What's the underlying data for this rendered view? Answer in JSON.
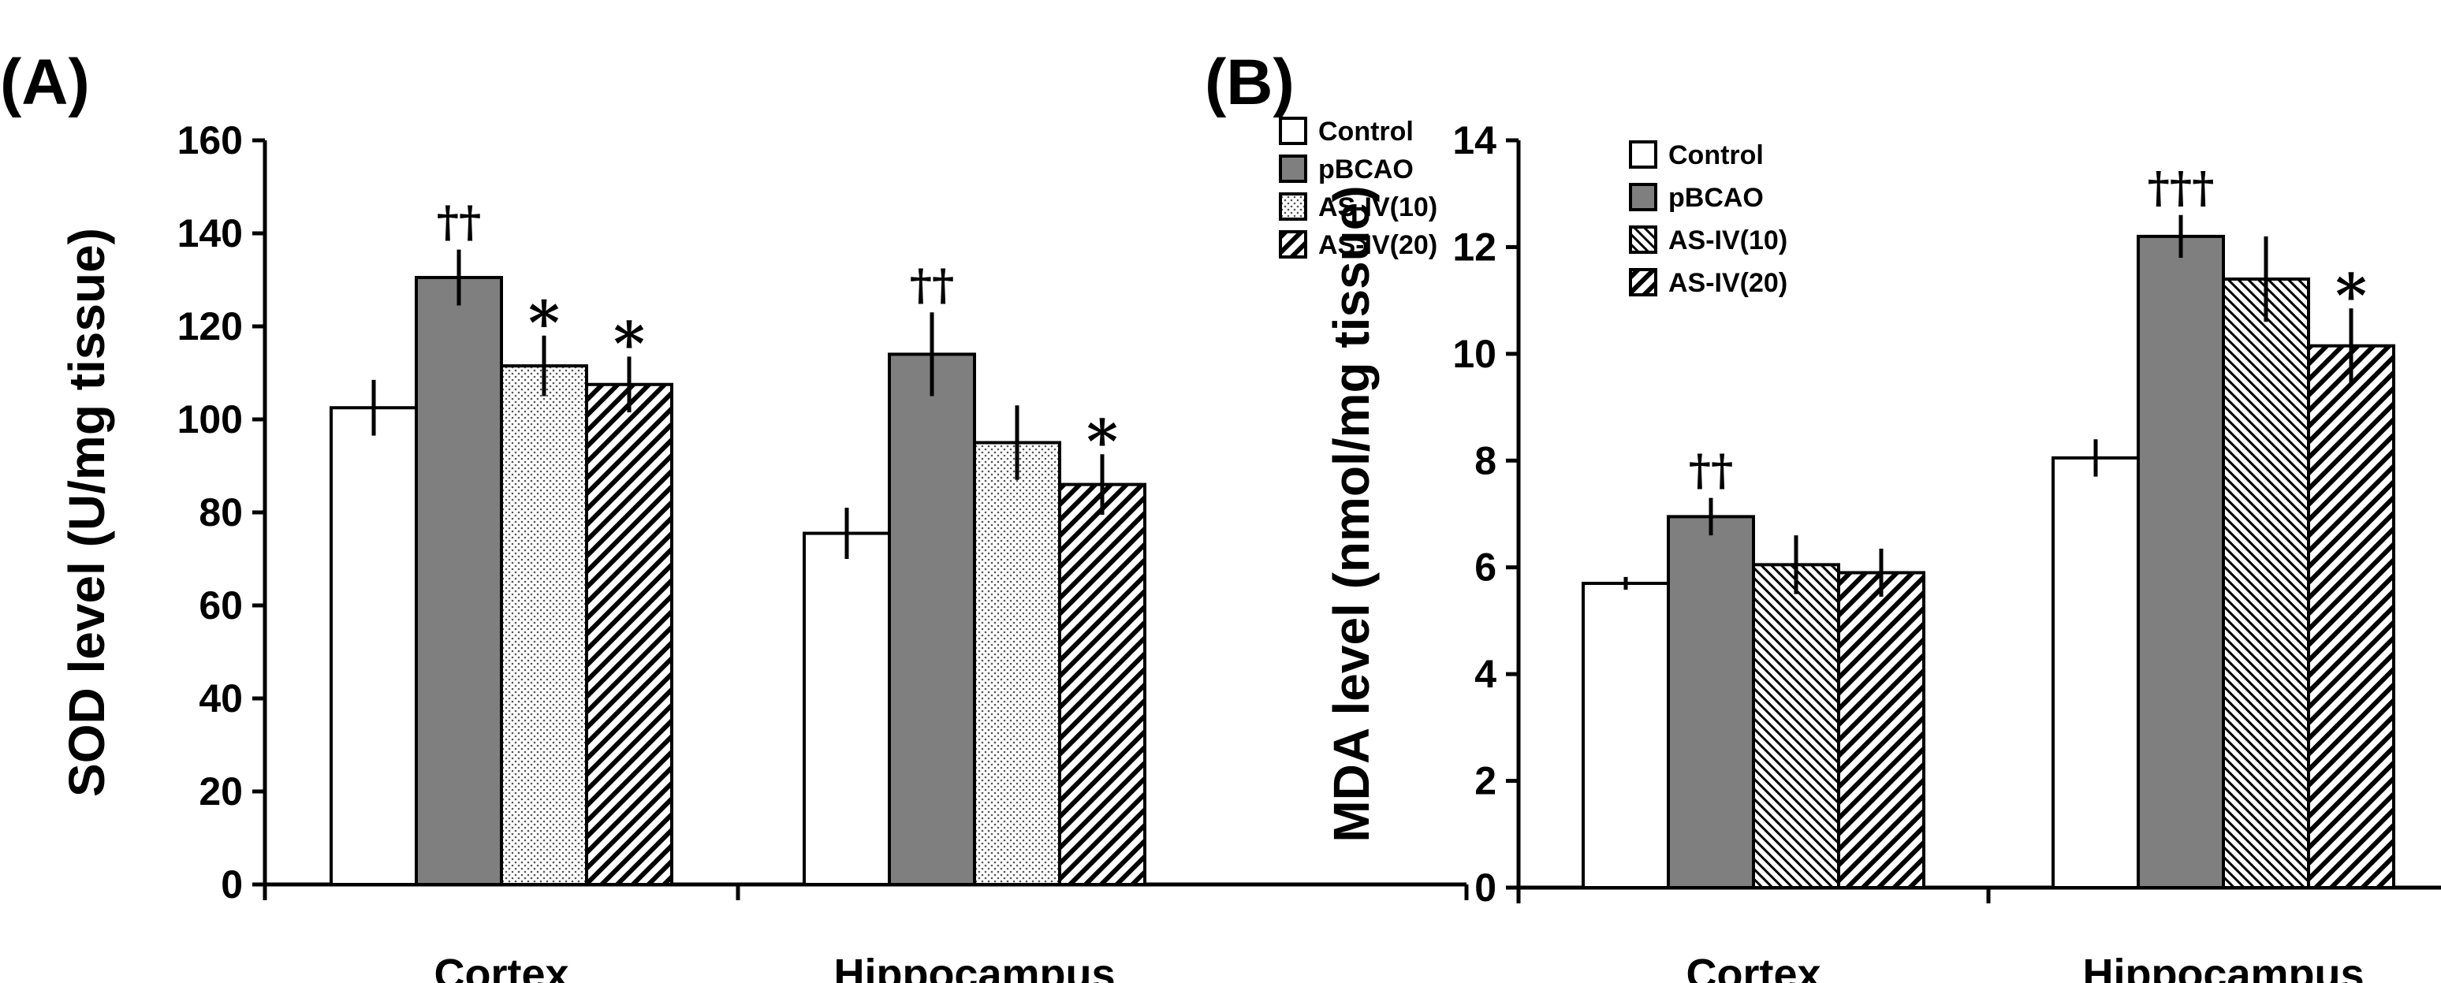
{
  "chart_data": [
    {
      "type": "bar",
      "panel_label": "(A)",
      "ylabel": "SOD level (U/mg tissue)",
      "xlabel": "",
      "ylim": [
        0,
        160
      ],
      "yticks": [
        "0",
        "20",
        "40",
        "60",
        "80",
        "100",
        "120",
        "140",
        "160"
      ],
      "categories": [
        "Cortex",
        "Hippocampus"
      ],
      "legend_position": "top-right",
      "series": [
        {
          "name": "Control",
          "pattern": "white",
          "values": [
            102.5,
            75.5
          ],
          "errors": [
            6,
            5.5
          ],
          "marks": [
            "",
            ""
          ]
        },
        {
          "name": "pBCAO",
          "pattern": "gray",
          "values": [
            130.5,
            114
          ],
          "errors": [
            6,
            9
          ],
          "marks": [
            "††",
            "††"
          ]
        },
        {
          "name": "AS-IV(10)",
          "pattern": "dots",
          "values": [
            111.5,
            95
          ],
          "errors": [
            6.5,
            8
          ],
          "marks": [
            "*",
            ""
          ]
        },
        {
          "name": "AS-IV(20)",
          "pattern": "hatch-dense",
          "values": [
            107.5,
            86
          ],
          "errors": [
            6,
            6.5
          ],
          "marks": [
            "*",
            "*"
          ]
        }
      ]
    },
    {
      "type": "bar",
      "panel_label": "(B)",
      "ylabel": "MDA level (nmol/mg tissue)",
      "xlabel": "",
      "ylim": [
        0,
        14
      ],
      "yticks": [
        "0",
        "2",
        "4",
        "6",
        "8",
        "10",
        "12",
        "14"
      ],
      "categories": [
        "Cortex",
        "Hippocampus"
      ],
      "legend_position": "top-left",
      "series": [
        {
          "name": "Control",
          "pattern": "white",
          "values": [
            5.7,
            8.05
          ],
          "errors": [
            0.12,
            0.35
          ],
          "marks": [
            "",
            ""
          ]
        },
        {
          "name": "pBCAO",
          "pattern": "gray",
          "values": [
            6.95,
            12.2
          ],
          "errors": [
            0.35,
            0.4
          ],
          "marks": [
            "††",
            "†††"
          ]
        },
        {
          "name": "AS-IV(10)",
          "pattern": "hatch-fine",
          "values": [
            6.05,
            11.4
          ],
          "errors": [
            0.55,
            0.8
          ],
          "marks": [
            "",
            ""
          ]
        },
        {
          "name": "AS-IV(20)",
          "pattern": "hatch-dense",
          "values": [
            5.9,
            10.15
          ],
          "errors": [
            0.45,
            0.7
          ],
          "marks": [
            "",
            "*"
          ]
        }
      ]
    }
  ]
}
